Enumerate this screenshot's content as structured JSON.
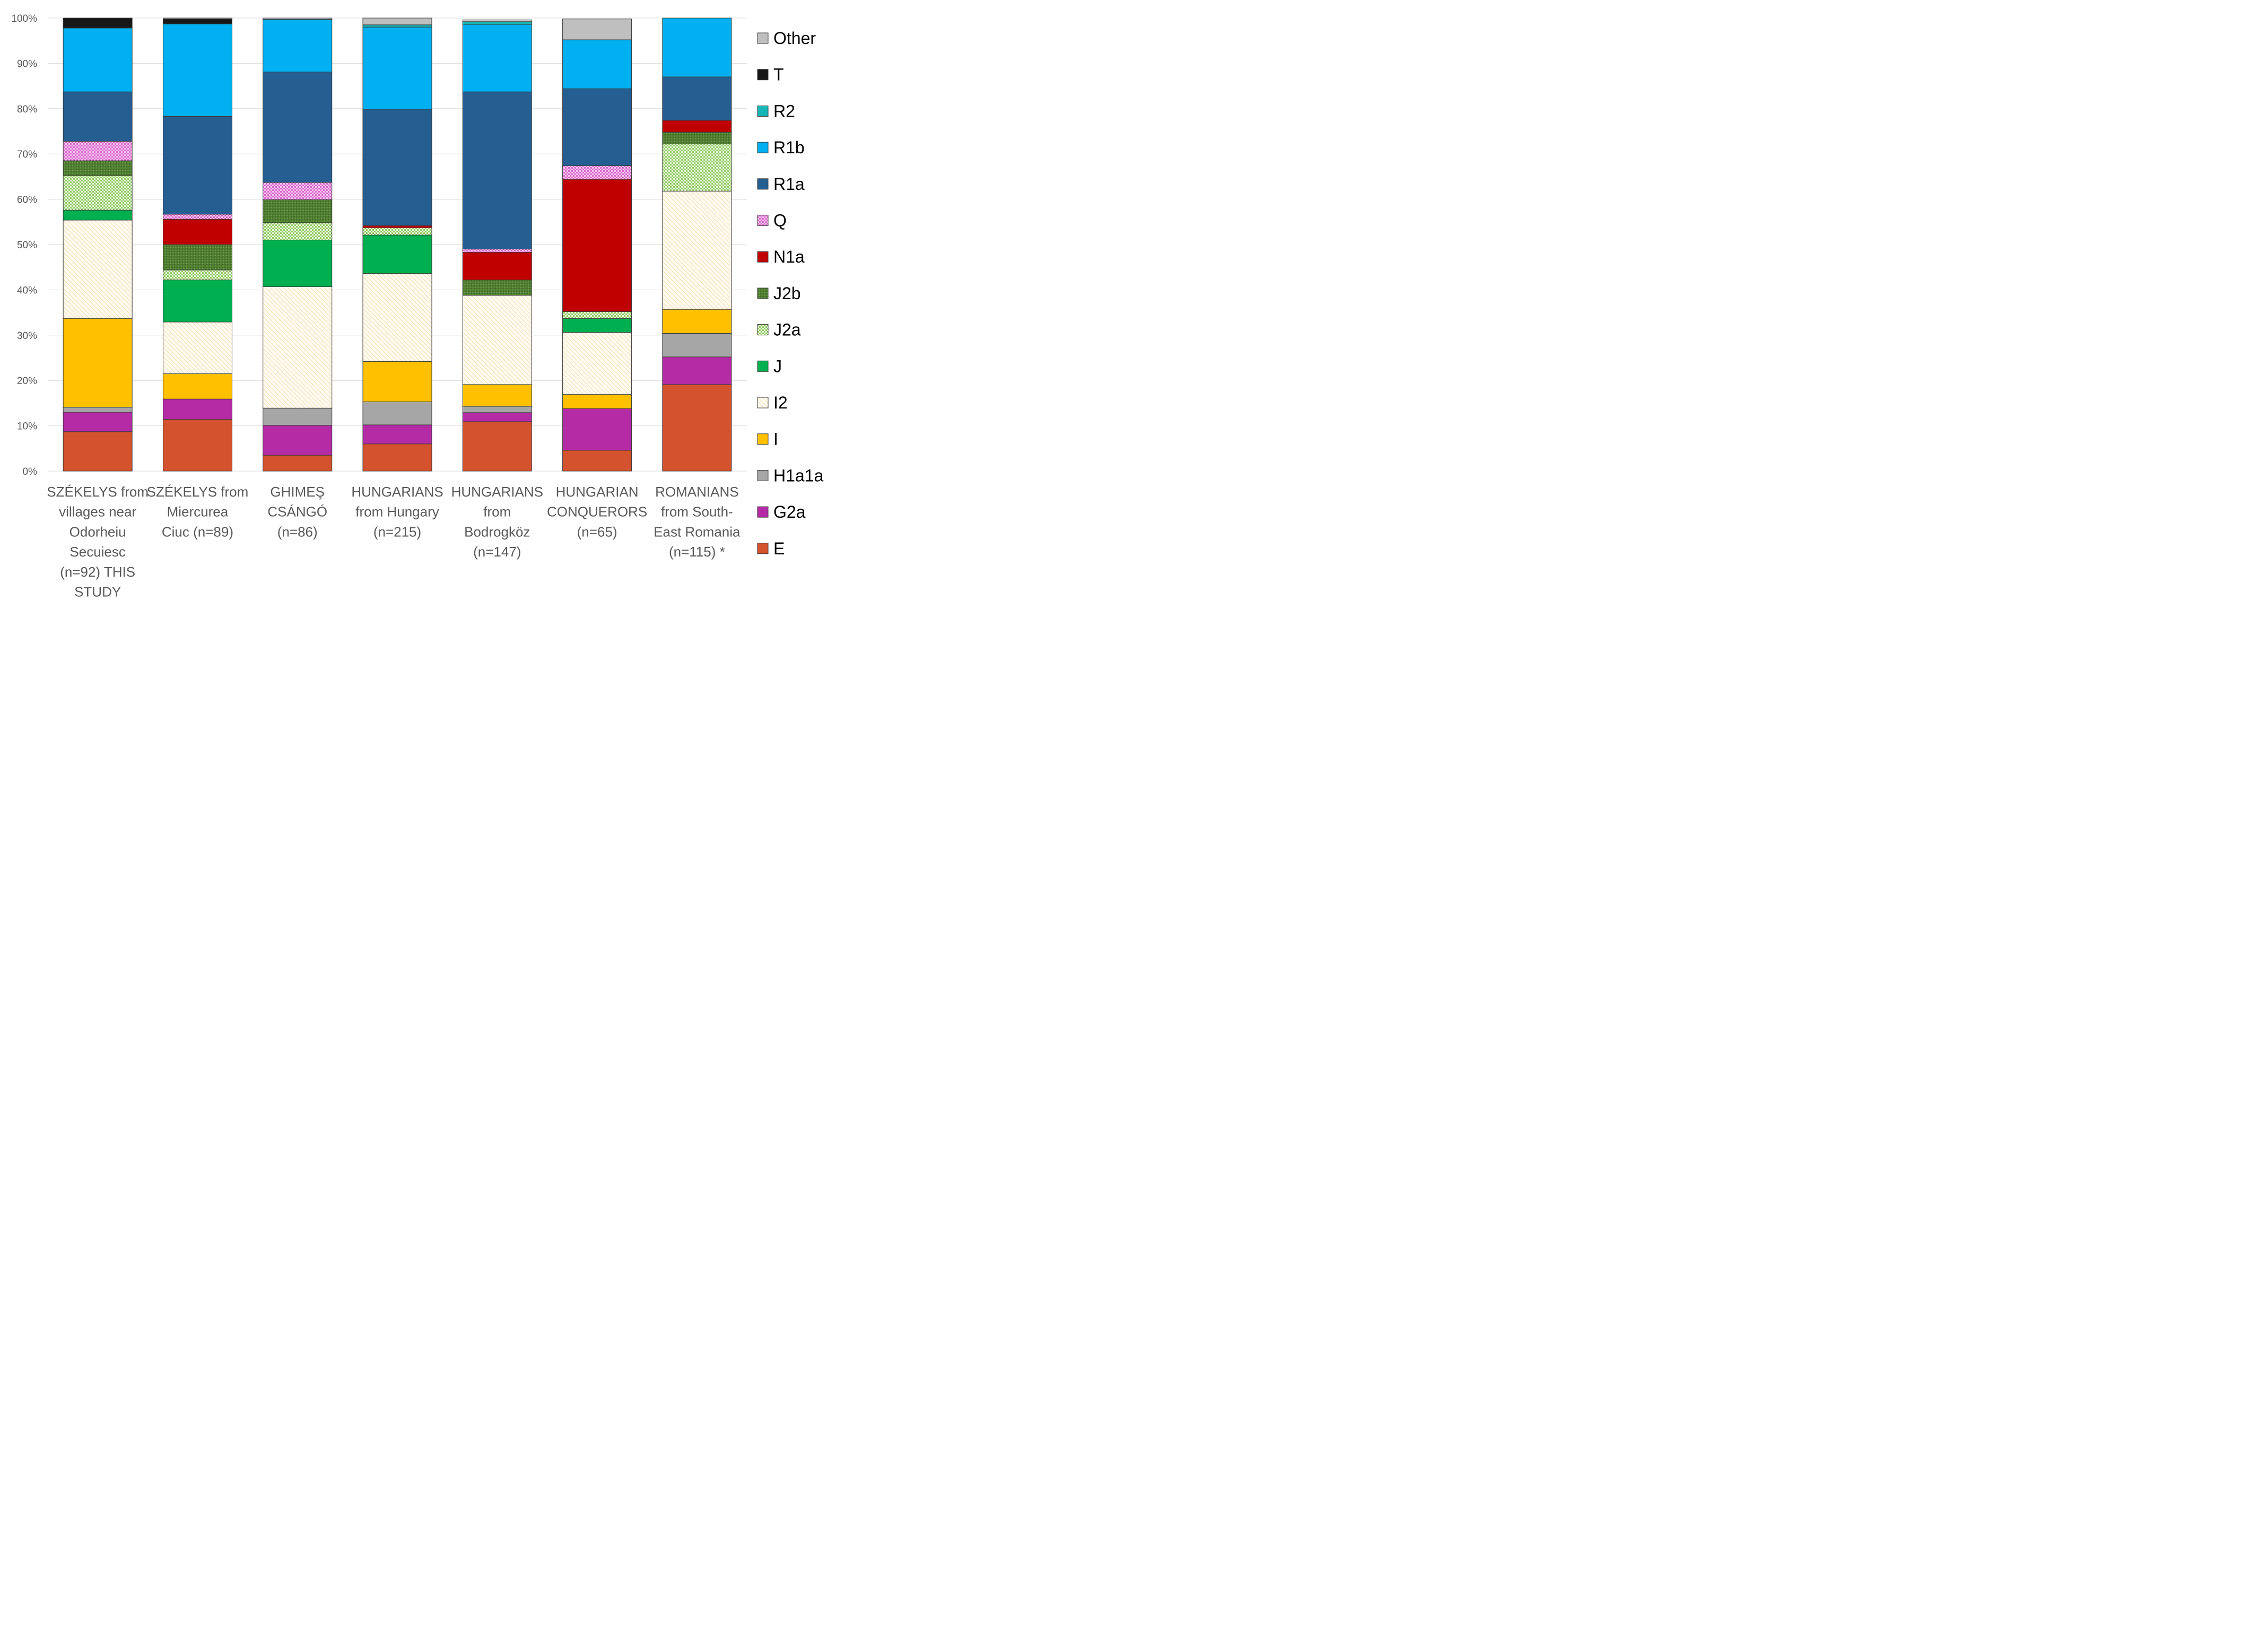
{
  "chart_data": {
    "type": "bar",
    "stacked": "percent",
    "title": "",
    "xlabel": "",
    "ylabel": "",
    "ylim": [
      0,
      100
    ],
    "yticks": [
      "0%",
      "10%",
      "20%",
      "30%",
      "40%",
      "50%",
      "60%",
      "70%",
      "80%",
      "90%",
      "100%"
    ],
    "legend_position": "right",
    "grid": true,
    "categories": [
      [
        "SZÉKELYS from",
        "villages near",
        "Odorheiu",
        "Secuiesc",
        "(n=92) THIS",
        "STUDY"
      ],
      [
        "SZÉKELYS from",
        "Miercurea",
        "Ciuc  (n=89)"
      ],
      [
        "GHIMEŞ",
        "CSÁNGÓ",
        "(n=86)"
      ],
      [
        "HUNGARIANS",
        "from Hungary",
        "(n=215)"
      ],
      [
        "HUNGARIANS",
        "from",
        "Bodrogköz",
        "(n=147)"
      ],
      [
        "HUNGARIAN",
        "CONQUERORS",
        "(n=65)"
      ],
      [
        "ROMANIANS",
        "from South-",
        "East Romania",
        "(n=115) *"
      ]
    ],
    "series": [
      {
        "name": "E",
        "color": "#d5522e",
        "pattern": "solid",
        "values": [
          8.7,
          11.4,
          3.5,
          6.0,
          10.9,
          4.6,
          19.1
        ]
      },
      {
        "name": "G2a",
        "color": "#b52aa5",
        "pattern": "solid",
        "values": [
          4.3,
          4.5,
          6.6,
          4.2,
          2.0,
          9.2,
          6.1
        ]
      },
      {
        "name": "H1a1a",
        "color": "#a6a6a6",
        "pattern": "solid",
        "values": [
          1.1,
          0.0,
          3.8,
          5.1,
          1.4,
          0.0,
          5.2
        ]
      },
      {
        "name": "I",
        "color": "#ffc000",
        "pattern": "solid",
        "values": [
          19.6,
          5.6,
          0.0,
          8.9,
          4.8,
          3.1,
          5.3
        ]
      },
      {
        "name": "I2",
        "color": "#fdf3d0",
        "pattern": "diagonal",
        "values": [
          21.7,
          11.4,
          26.8,
          19.4,
          19.7,
          13.7,
          26.1
        ]
      },
      {
        "name": "J",
        "color": "#00b050",
        "pattern": "solid",
        "values": [
          2.2,
          9.3,
          10.3,
          8.5,
          0.0,
          3.1,
          0.0
        ]
      },
      {
        "name": "J2a",
        "color": "#92d050",
        "pattern": "checker",
        "values": [
          7.6,
          2.2,
          3.8,
          1.6,
          0.0,
          1.5,
          10.4
        ]
      },
      {
        "name": "J2b",
        "color": "#538135",
        "pattern": "dots",
        "values": [
          3.3,
          5.6,
          5.1,
          0.0,
          3.4,
          0.0,
          2.6
        ]
      },
      {
        "name": "N1a",
        "color": "#c00000",
        "pattern": "solid",
        "values": [
          0.0,
          5.6,
          0.0,
          0.5,
          6.1,
          29.2,
          2.6
        ]
      },
      {
        "name": "Q",
        "color": "#e07fd8",
        "pattern": "checker",
        "values": [
          4.3,
          1.1,
          3.8,
          0.0,
          0.7,
          3.0,
          0.0
        ]
      },
      {
        "name": "R1a",
        "color": "#255e91",
        "pattern": "solid",
        "values": [
          10.9,
          21.6,
          24.4,
          25.7,
          34.7,
          17.0,
          9.6
        ]
      },
      {
        "name": "R1b",
        "color": "#00b0f0",
        "pattern": "solid",
        "values": [
          14.1,
          20.4,
          11.6,
          18.1,
          14.9,
          10.8,
          13.0
        ]
      },
      {
        "name": "R2",
        "color": "#17b5b5",
        "pattern": "solid",
        "values": [
          0.0,
          0.0,
          0.0,
          0.5,
          0.6,
          0.0,
          0.0
        ]
      },
      {
        "name": "T",
        "color": "#171717",
        "pattern": "solid",
        "values": [
          2.2,
          1.1,
          0.0,
          0.0,
          0.0,
          0.0,
          0.0
        ]
      },
      {
        "name": "Other",
        "color": "#bfbfbf",
        "pattern": "solid",
        "values": [
          0.0,
          0.2,
          0.3,
          1.5,
          0.4,
          4.6,
          0.0
        ]
      }
    ],
    "legend_order": [
      "Other",
      "T",
      "R2",
      "R1b",
      "R1a",
      "Q",
      "N1a",
      "J2b",
      "J2a",
      "J",
      "I2",
      "I",
      "H1a1a",
      "G2a",
      "E"
    ]
  }
}
